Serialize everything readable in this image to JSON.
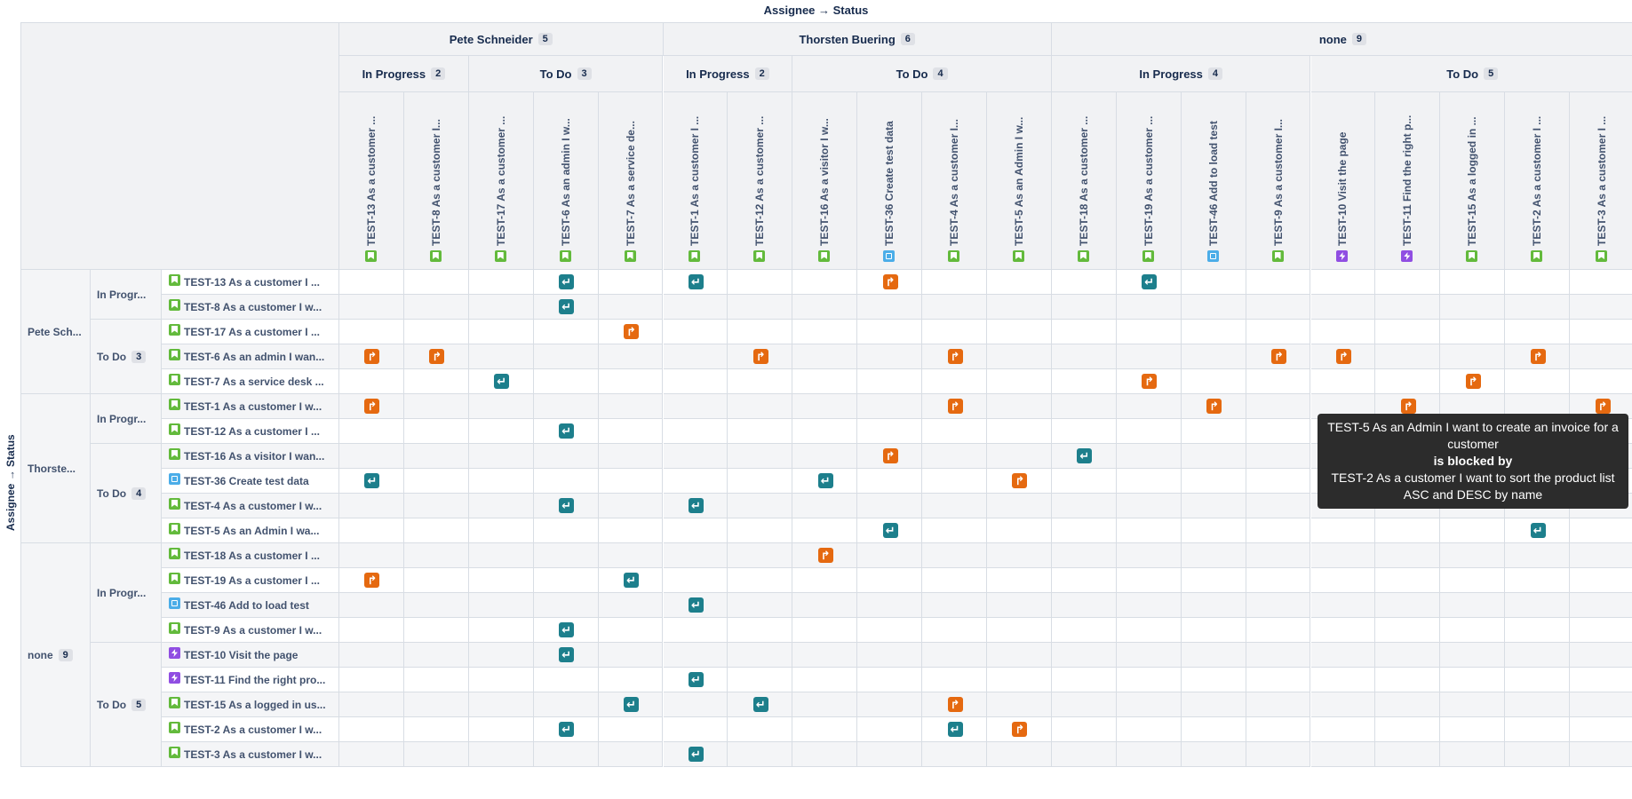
{
  "title": "Assignee → Status",
  "side_title": "Assignee → Status",
  "assignees": [
    {
      "name": "Pete Schneider",
      "short": "Pete Sch...",
      "count": "5",
      "statuses": [
        {
          "label": "In Progress",
          "short": "In Progr...",
          "count": "2"
        },
        {
          "label": "To Do",
          "short": "To Do",
          "count": "3"
        }
      ]
    },
    {
      "name": "Thorsten Buering",
      "short": "Thorste...",
      "count": "6",
      "statuses": [
        {
          "label": "In Progress",
          "short": "In Progr...",
          "count": "2"
        },
        {
          "label": "To Do",
          "short": "To Do",
          "count": "4"
        }
      ]
    },
    {
      "name": "none",
      "short": "none",
      "count": "9",
      "statuses": [
        {
          "label": "In Progress",
          "short": "In Progr...",
          "count": "4"
        },
        {
          "label": "To Do",
          "short": "To Do",
          "count": "5"
        }
      ]
    }
  ],
  "column_issues": [
    {
      "label": "TEST-13 As a customer ...",
      "type": "story"
    },
    {
      "label": "TEST-8 As a customer I...",
      "type": "story"
    },
    {
      "label": "TEST-17 As a customer ...",
      "type": "story"
    },
    {
      "label": "TEST-6 As an admin I w...",
      "type": "story"
    },
    {
      "label": "TEST-7 As a service de...",
      "type": "story"
    },
    {
      "label": "TEST-1 As a customer I ...",
      "type": "story"
    },
    {
      "label": "TEST-12 As a customer ...",
      "type": "story"
    },
    {
      "label": "TEST-16 As a visitor I w...",
      "type": "story"
    },
    {
      "label": "TEST-36 Create test data",
      "type": "task"
    },
    {
      "label": "TEST-4 As a customer I...",
      "type": "story"
    },
    {
      "label": "TEST-5 As an Admin I w...",
      "type": "story"
    },
    {
      "label": "TEST-18 As a customer ...",
      "type": "story"
    },
    {
      "label": "TEST-19 As a customer ...",
      "type": "story"
    },
    {
      "label": "TEST-46 Add to load test",
      "type": "task"
    },
    {
      "label": "TEST-9 As a customer I...",
      "type": "story"
    },
    {
      "label": "TEST-10 Visit the page",
      "type": "bug"
    },
    {
      "label": "TEST-11 Find the right p...",
      "type": "bug"
    },
    {
      "label": "TEST-15 As a logged in ...",
      "type": "story"
    },
    {
      "label": "TEST-2 As a customer I ...",
      "type": "story"
    },
    {
      "label": "TEST-3 As a customer I ...",
      "type": "story"
    }
  ],
  "row_issues": [
    {
      "label": "TEST-13 As a customer I ...",
      "type": "story"
    },
    {
      "label": "TEST-8 As a customer I w...",
      "type": "story"
    },
    {
      "label": "TEST-17 As a customer I ...",
      "type": "story"
    },
    {
      "label": "TEST-6 As an admin I wan...",
      "type": "story"
    },
    {
      "label": "TEST-7 As a service desk ...",
      "type": "story"
    },
    {
      "label": "TEST-1 As a customer I w...",
      "type": "story"
    },
    {
      "label": "TEST-12 As a customer I ...",
      "type": "story"
    },
    {
      "label": "TEST-16 As a visitor I wan...",
      "type": "story"
    },
    {
      "label": "TEST-36 Create test data",
      "type": "task"
    },
    {
      "label": "TEST-4 As a customer I w...",
      "type": "story"
    },
    {
      "label": "TEST-5 As an Admin I wa...",
      "type": "story"
    },
    {
      "label": "TEST-18 As a customer I ...",
      "type": "story"
    },
    {
      "label": "TEST-19 As a customer I ...",
      "type": "story"
    },
    {
      "label": "TEST-46 Add to load test",
      "type": "task"
    },
    {
      "label": "TEST-9 As a customer I w...",
      "type": "story"
    },
    {
      "label": "TEST-10 Visit the page",
      "type": "bug"
    },
    {
      "label": "TEST-11 Find the right pro...",
      "type": "bug"
    },
    {
      "label": "TEST-15 As a logged in us...",
      "type": "story"
    },
    {
      "label": "TEST-2 As a customer I w...",
      "type": "story"
    },
    {
      "label": "TEST-3 As a customer I w...",
      "type": "story"
    }
  ],
  "dependencies": [
    {
      "row": 0,
      "col": 3,
      "kind": "blockedby"
    },
    {
      "row": 0,
      "col": 5,
      "kind": "blockedby"
    },
    {
      "row": 0,
      "col": 8,
      "kind": "blocks"
    },
    {
      "row": 0,
      "col": 12,
      "kind": "blockedby"
    },
    {
      "row": 1,
      "col": 3,
      "kind": "blockedby"
    },
    {
      "row": 2,
      "col": 4,
      "kind": "blocks"
    },
    {
      "row": 3,
      "col": 0,
      "kind": "blocks"
    },
    {
      "row": 3,
      "col": 1,
      "kind": "blocks"
    },
    {
      "row": 3,
      "col": 6,
      "kind": "blocks"
    },
    {
      "row": 3,
      "col": 9,
      "kind": "blocks"
    },
    {
      "row": 3,
      "col": 14,
      "kind": "blocks"
    },
    {
      "row": 3,
      "col": 15,
      "kind": "blocks"
    },
    {
      "row": 3,
      "col": 18,
      "kind": "blocks"
    },
    {
      "row": 4,
      "col": 2,
      "kind": "blockedby"
    },
    {
      "row": 4,
      "col": 12,
      "kind": "blocks"
    },
    {
      "row": 4,
      "col": 17,
      "kind": "blocks"
    },
    {
      "row": 5,
      "col": 0,
      "kind": "blocks"
    },
    {
      "row": 5,
      "col": 9,
      "kind": "blocks"
    },
    {
      "row": 5,
      "col": 13,
      "kind": "blocks"
    },
    {
      "row": 5,
      "col": 16,
      "kind": "blocks"
    },
    {
      "row": 5,
      "col": 19,
      "kind": "blocks"
    },
    {
      "row": 6,
      "col": 3,
      "kind": "blockedby"
    },
    {
      "row": 7,
      "col": 8,
      "kind": "blocks"
    },
    {
      "row": 7,
      "col": 11,
      "kind": "blockedby"
    },
    {
      "row": 8,
      "col": 0,
      "kind": "blockedby"
    },
    {
      "row": 8,
      "col": 7,
      "kind": "blockedby"
    },
    {
      "row": 8,
      "col": 10,
      "kind": "blocks"
    },
    {
      "row": 9,
      "col": 3,
      "kind": "blockedby"
    },
    {
      "row": 9,
      "col": 5,
      "kind": "blockedby"
    },
    {
      "row": 10,
      "col": 8,
      "kind": "blockedby"
    },
    {
      "row": 10,
      "col": 18,
      "kind": "blockedby"
    },
    {
      "row": 11,
      "col": 7,
      "kind": "blocks"
    },
    {
      "row": 12,
      "col": 0,
      "kind": "blocks"
    },
    {
      "row": 12,
      "col": 4,
      "kind": "blockedby"
    },
    {
      "row": 13,
      "col": 5,
      "kind": "blockedby"
    },
    {
      "row": 14,
      "col": 3,
      "kind": "blockedby"
    },
    {
      "row": 15,
      "col": 3,
      "kind": "blockedby"
    },
    {
      "row": 16,
      "col": 5,
      "kind": "blockedby"
    },
    {
      "row": 17,
      "col": 4,
      "kind": "blockedby"
    },
    {
      "row": 17,
      "col": 6,
      "kind": "blockedby"
    },
    {
      "row": 17,
      "col": 9,
      "kind": "blocks"
    },
    {
      "row": 18,
      "col": 3,
      "kind": "blockedby"
    },
    {
      "row": 18,
      "col": 9,
      "kind": "blockedby"
    },
    {
      "row": 18,
      "col": 10,
      "kind": "blocks"
    },
    {
      "row": 19,
      "col": 5,
      "kind": "blockedby"
    }
  ],
  "tooltip": {
    "source": "TEST-5 As an Admin I want to create an invoice for a customer",
    "relation": "is blocked by",
    "target": "TEST-2 As a customer I want to sort the product list ASC and DESC by name"
  },
  "colors": {
    "header_bg": "#f1f2f4",
    "blocks": "#e56910",
    "blocked_by": "#1d7f8c",
    "story": "#63ba3c",
    "task": "#4bade8",
    "bug": "#904ee2"
  }
}
